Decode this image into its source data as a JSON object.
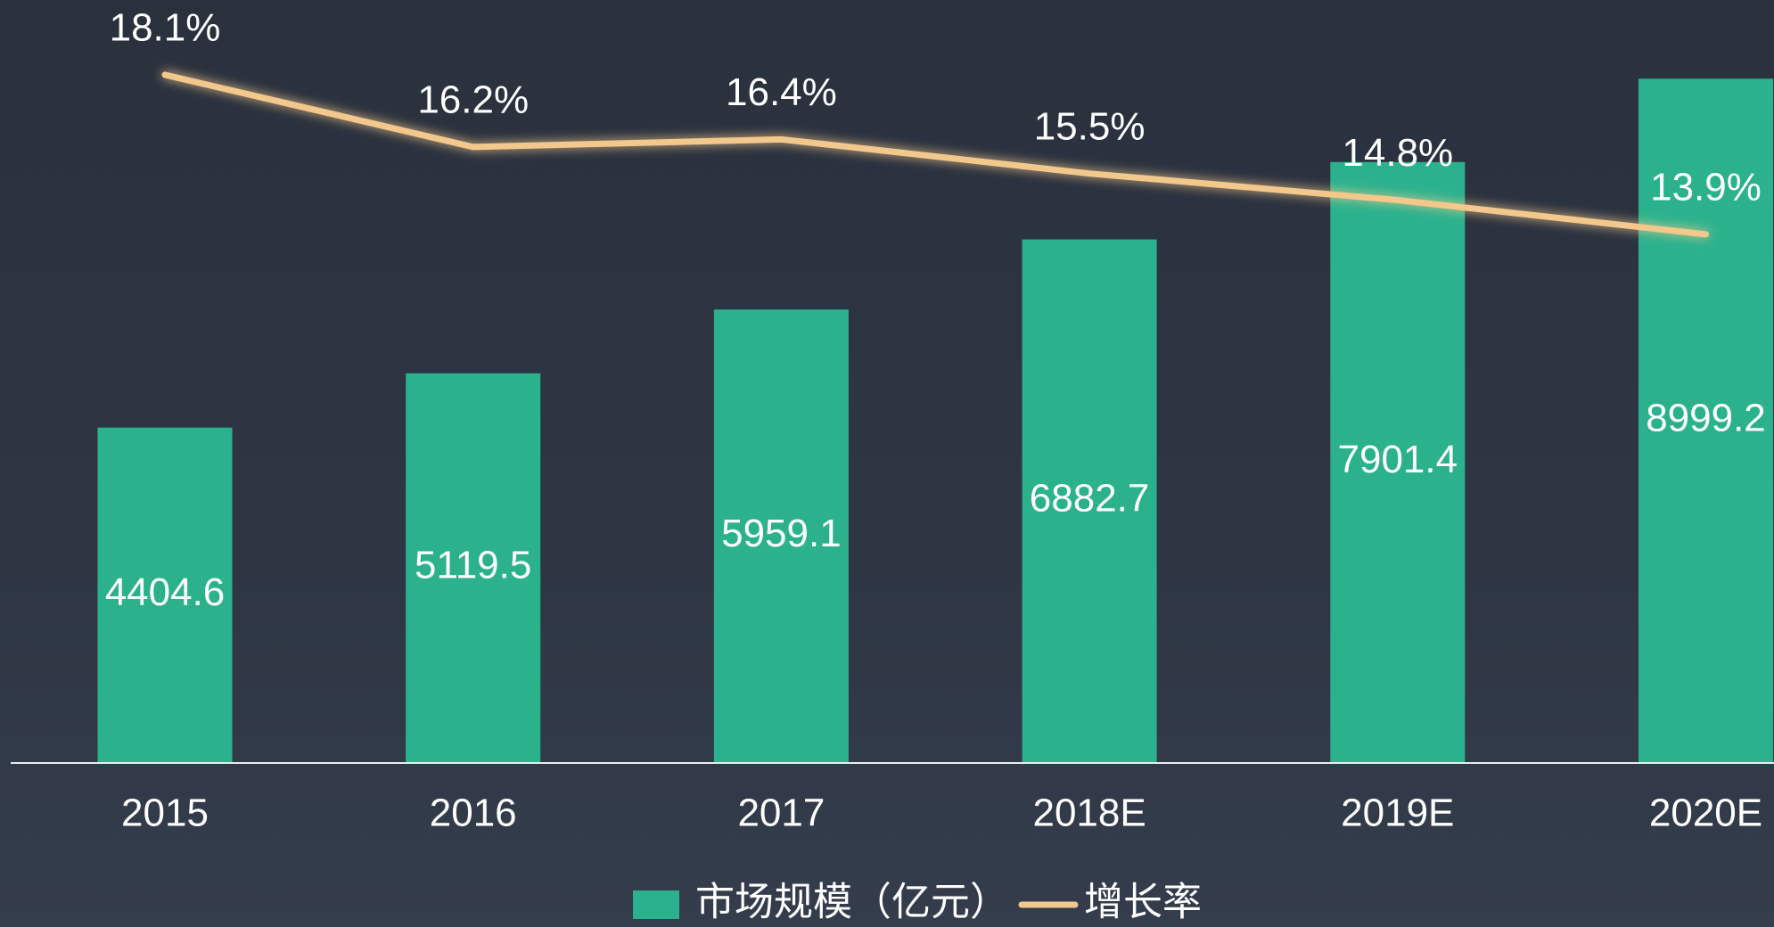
{
  "chart_data": {
    "type": "bar",
    "categories": [
      "2015",
      "2016",
      "2017",
      "2018E",
      "2019E",
      "2020E"
    ],
    "series": [
      {
        "name": "市场规模（亿元）",
        "type": "bar",
        "color": "#2bb28d",
        "values": [
          4404.6,
          5119.5,
          5959.1,
          6882.7,
          7901.4,
          8999.2
        ]
      },
      {
        "name": "增长率",
        "type": "line",
        "axis": "y2",
        "color": "#f3c88c",
        "values": [
          18.1,
          16.2,
          16.4,
          15.5,
          14.8,
          13.9
        ],
        "value_labels": [
          "18.1%",
          "16.2%",
          "16.4%",
          "15.5%",
          "14.8%",
          "13.9%"
        ]
      }
    ],
    "ylim": [
      0,
      10000
    ],
    "y2lim": [
      0,
      20
    ],
    "grid": false,
    "legend": "bottom"
  }
}
